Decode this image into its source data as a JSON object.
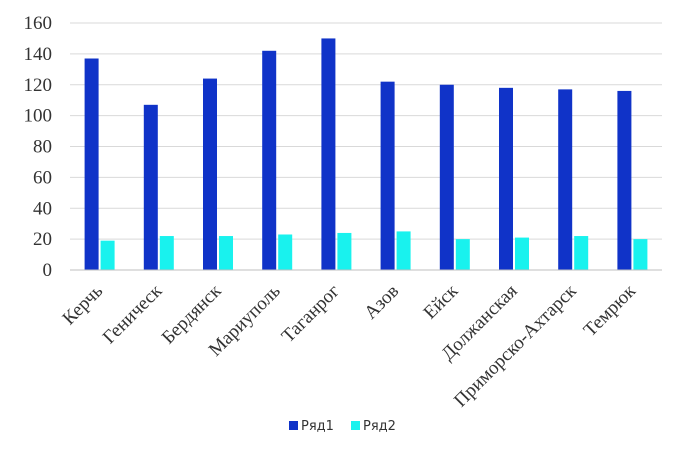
{
  "chart_data": {
    "type": "bar",
    "title": "",
    "xlabel": "",
    "ylabel": "",
    "ylim": [
      0,
      160
    ],
    "yticks": [
      0,
      20,
      40,
      60,
      80,
      100,
      120,
      140,
      160
    ],
    "grid": true,
    "legend_position": "bottom",
    "categories": [
      "Керчь",
      "Геническ",
      "Бердянск",
      "Мариуполь",
      "Таганрог",
      "Азов",
      "Ейск",
      "Должанская",
      "Приморско-Ахтарск",
      "Темрюк"
    ],
    "series": [
      {
        "name": "Ряд1",
        "color": "#1033c8",
        "values": [
          137,
          107,
          124,
          142,
          150,
          122,
          120,
          118,
          117,
          116
        ]
      },
      {
        "name": "Ряд2",
        "color": "#19f2ee",
        "values": [
          19,
          22,
          22,
          23,
          24,
          25,
          20,
          21,
          22,
          20
        ]
      }
    ]
  }
}
